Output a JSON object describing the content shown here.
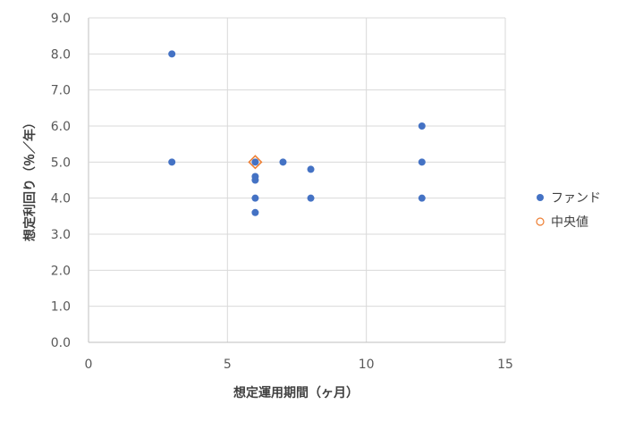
{
  "chart_data": {
    "type": "scatter",
    "title": "",
    "xlabel": "想定運用期間（ヶ月）",
    "ylabel": "想定利回り（％／年）",
    "xlim": [
      0,
      15
    ],
    "ylim": [
      0,
      9
    ],
    "x_ticks": [
      0,
      5,
      10,
      15
    ],
    "x_tick_labels": [
      "0",
      "5",
      "10",
      "15"
    ],
    "y_ticks": [
      0,
      1,
      2,
      3,
      4,
      5,
      6,
      7,
      8,
      9
    ],
    "y_tick_labels": [
      "0.0",
      "1.0",
      "2.0",
      "3.0",
      "4.0",
      "5.0",
      "6.0",
      "7.0",
      "8.0",
      "9.0"
    ],
    "grid": true,
    "legend_position": "right",
    "series": [
      {
        "name": "ファンド",
        "marker": "filled-circle",
        "color": "#4472c4",
        "points": [
          {
            "x": 3,
            "y": 8.0
          },
          {
            "x": 3,
            "y": 5.0
          },
          {
            "x": 6,
            "y": 5.0
          },
          {
            "x": 6,
            "y": 4.6
          },
          {
            "x": 6,
            "y": 4.5
          },
          {
            "x": 6,
            "y": 4.0
          },
          {
            "x": 6,
            "y": 3.6
          },
          {
            "x": 7,
            "y": 5.0
          },
          {
            "x": 8,
            "y": 4.8
          },
          {
            "x": 8,
            "y": 4.0
          },
          {
            "x": 12,
            "y": 6.0
          },
          {
            "x": 12,
            "y": 5.0
          },
          {
            "x": 12,
            "y": 4.0
          }
        ]
      },
      {
        "name": "中央値",
        "marker": "hollow-circle",
        "color": "#ed7d31",
        "points": [
          {
            "x": 6,
            "y": 5.0
          }
        ]
      }
    ]
  }
}
